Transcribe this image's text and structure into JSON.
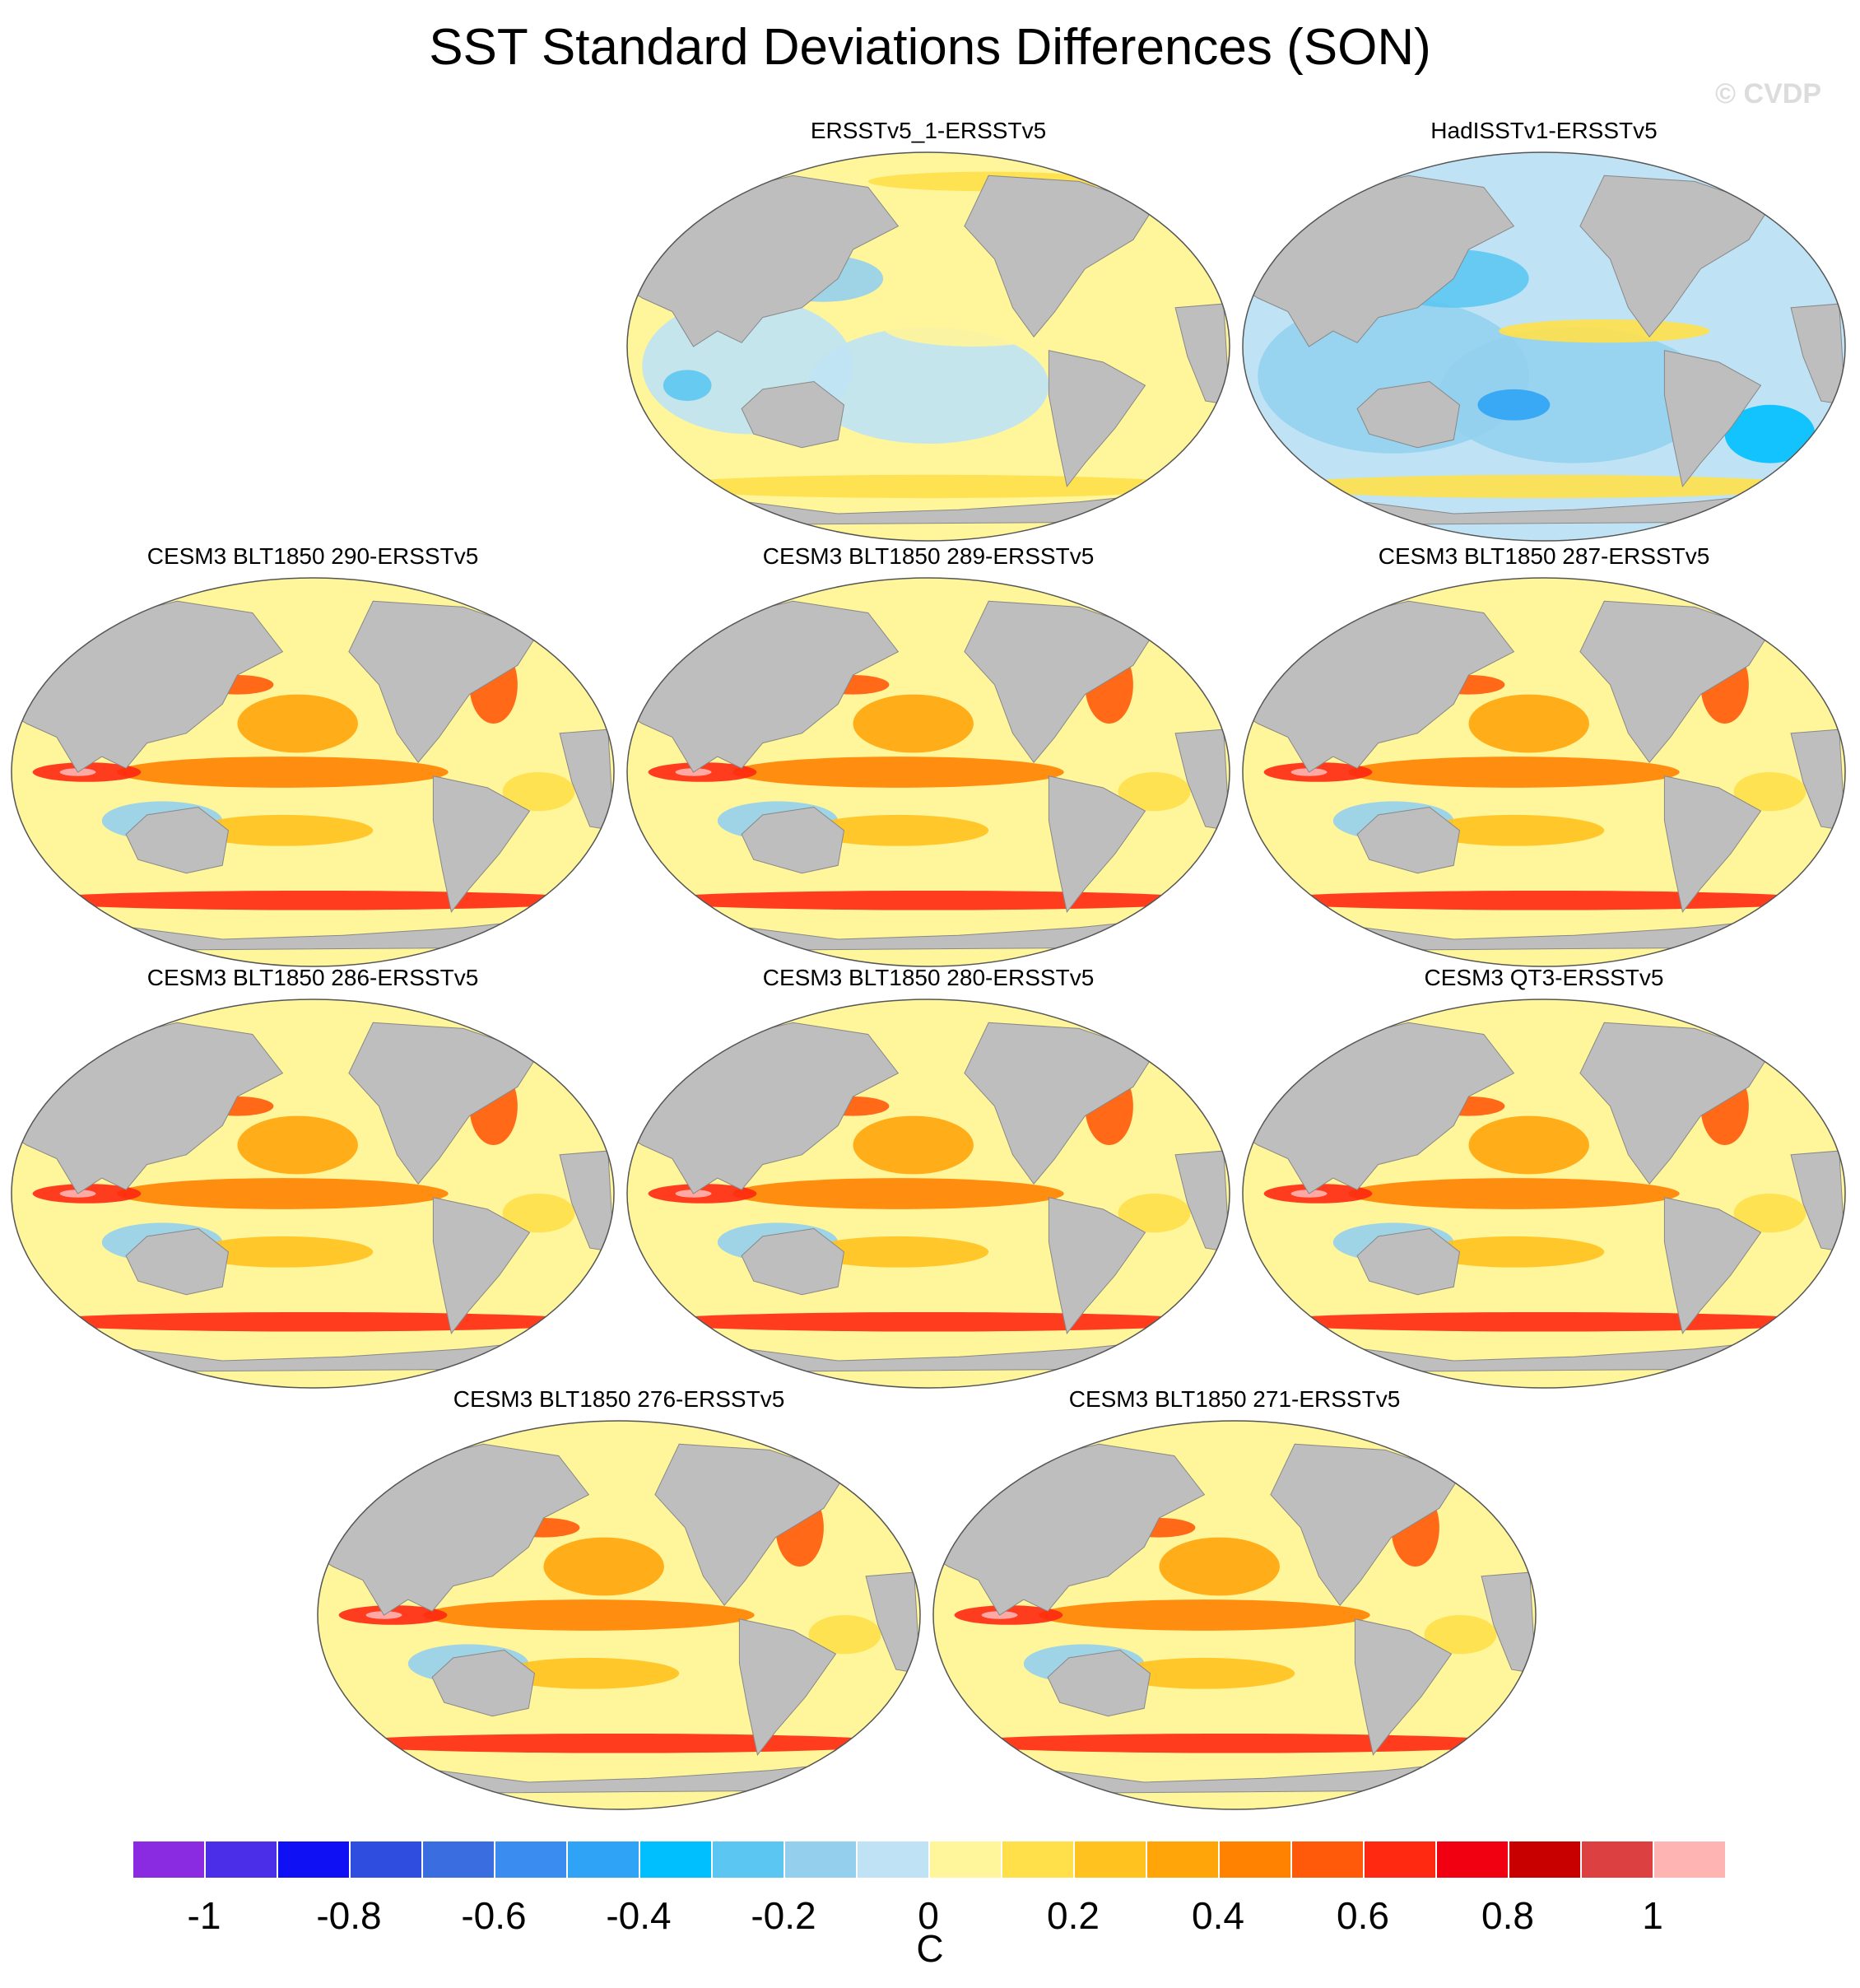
{
  "title": "SST Standard Deviations Differences (SON)",
  "credit": "© CVDP",
  "panels": [
    {
      "label": "ERSSTv5_1-ERSSTv5",
      "style": "obs1"
    },
    {
      "label": "HadISSTv1-ERSSTv5",
      "style": "obs2"
    },
    {
      "label": "CESM3 BLT1850 290-ERSSTv5",
      "style": "model"
    },
    {
      "label": "CESM3 BLT1850 289-ERSSTv5",
      "style": "model"
    },
    {
      "label": "CESM3 BLT1850 287-ERSSTv5",
      "style": "model"
    },
    {
      "label": "CESM3 BLT1850 286-ERSSTv5",
      "style": "model"
    },
    {
      "label": "CESM3 BLT1850 280-ERSSTv5",
      "style": "model"
    },
    {
      "label": "CESM3 QT3-ERSSTv5",
      "style": "model"
    },
    {
      "label": "CESM3 BLT1850 276-ERSSTv5",
      "style": "model"
    },
    {
      "label": "CESM3 BLT1850 271-ERSSTv5",
      "style": "model"
    }
  ],
  "colorbar": {
    "units": "C",
    "colors": [
      "#8a2be2",
      "#4b2ee8",
      "#1010f5",
      "#2f4ee0",
      "#3a6ee0",
      "#3a8cf0",
      "#2fa3f5",
      "#00bfff",
      "#5cc6f2",
      "#94d0ee",
      "#bfe3f5",
      "#fff59a",
      "#ffe04a",
      "#ffc21e",
      "#ffa50a",
      "#ff8200",
      "#ff5a0a",
      "#ff2810",
      "#f00010",
      "#c80000",
      "#dc4040",
      "#ffb4b4"
    ],
    "tick_labels": [
      "-1",
      "-0.8",
      "-0.6",
      "-0.4",
      "-0.2",
      "0",
      "0.2",
      "0.4",
      "0.6",
      "0.8",
      "1"
    ]
  }
}
